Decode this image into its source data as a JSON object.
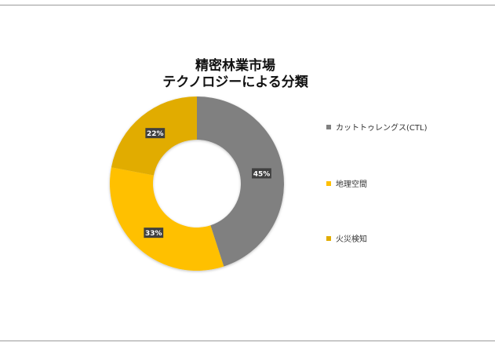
{
  "chart_data": {
    "type": "pie",
    "title_lines": [
      "精密林業市場",
      "テクノロジーによる分類"
    ],
    "categories": [
      "カットトゥレングス(CTL)",
      "地理空間",
      "火災検知"
    ],
    "values": [
      45,
      33,
      22
    ],
    "data_labels": [
      "45%",
      "33%",
      "22%"
    ],
    "colors": [
      "#808080",
      "#FFC000",
      "#E1AC00"
    ],
    "donut": true,
    "legend_position": "right"
  }
}
